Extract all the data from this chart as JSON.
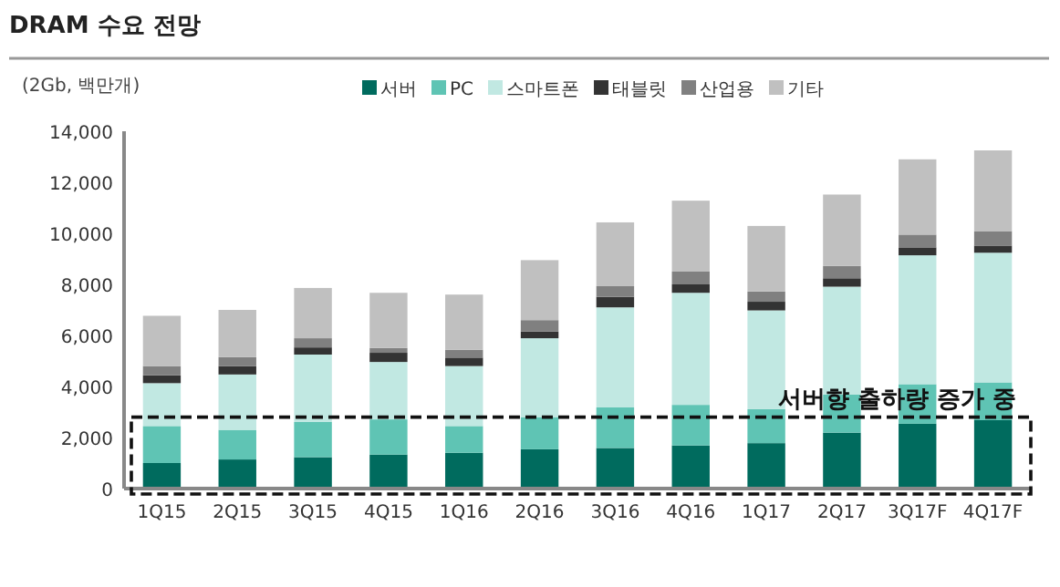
{
  "chart_data": {
    "type": "bar",
    "stacked": true,
    "title": "DRAM 수요 전망",
    "ylabel": "(2Gb, 백만개)",
    "categories": [
      "1Q15",
      "2Q15",
      "3Q15",
      "4Q15",
      "1Q16",
      "2Q16",
      "3Q16",
      "4Q16",
      "1Q17",
      "2Q17",
      "3Q17F",
      "4Q17F"
    ],
    "series": [
      {
        "name": "서버",
        "color": "#006b5e",
        "values": [
          1000,
          1140,
          1230,
          1330,
          1400,
          1540,
          1590,
          1690,
          1780,
          2190,
          2540,
          2680
        ]
      },
      {
        "name": "PC",
        "color": "#5fc4b4",
        "values": [
          1450,
          1160,
          1380,
          1380,
          1050,
          1260,
          1590,
          1590,
          1330,
          1490,
          1550,
          1480
        ]
      },
      {
        "name": "스마트폰",
        "color": "#c1e8e2",
        "values": [
          1680,
          2170,
          2640,
          2250,
          2350,
          3090,
          3920,
          4390,
          3870,
          4230,
          5050,
          5080
        ]
      },
      {
        "name": "태블릿",
        "color": "#333333",
        "values": [
          310,
          330,
          280,
          360,
          330,
          260,
          410,
          330,
          340,
          330,
          310,
          280
        ]
      },
      {
        "name": "산업용",
        "color": "#808080",
        "values": [
          360,
          350,
          360,
          190,
          310,
          450,
          420,
          500,
          400,
          480,
          500,
          570
        ]
      },
      {
        "name": "기타",
        "color": "#c0c0c0",
        "values": [
          1970,
          1850,
          1970,
          2160,
          2160,
          2350,
          2500,
          2780,
          2570,
          2800,
          2950,
          3160
        ]
      }
    ],
    "ylim": [
      0,
      14000
    ],
    "yticks": [
      {
        "value": 0,
        "label": "0"
      },
      {
        "value": 2000,
        "label": "2,000"
      },
      {
        "value": 4000,
        "label": "4,000"
      },
      {
        "value": 6000,
        "label": "6,000"
      },
      {
        "value": 8000,
        "label": "8,000"
      },
      {
        "value": 10000,
        "label": "10,000"
      },
      {
        "value": 12000,
        "label": "12,000"
      },
      {
        "value": 14000,
        "label": "14,000"
      }
    ],
    "legend": "top",
    "annotations": [
      "서버향 출하량 증가 중"
    ]
  }
}
